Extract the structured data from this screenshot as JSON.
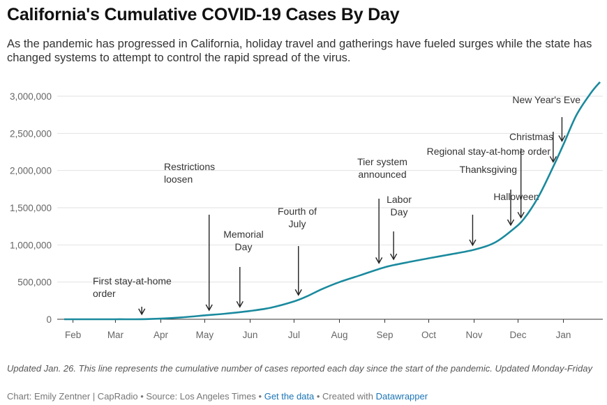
{
  "header": {
    "title": "California's Cumulative COVID-19 Cases By Day",
    "subtitle": "As the pandemic has progressed in California, holiday travel and gatherings have fueled surges while the state has changed systems to attempt to control the rapid spread of the virus."
  },
  "footer": {
    "note": "Updated Jan. 26. This line represents the cumulative number of cases reported each day since the start of the pandemic. Updated Monday-Friday",
    "byline": "Chart: Emily Zentner | CapRadio • Source: Los Angeles Times • ",
    "get_data": "Get the data",
    "separator": " • Created with ",
    "datawrapper": "Datawrapper"
  },
  "colors": {
    "line": "#1a8a9e",
    "grid": "#e2e2e2",
    "text": "#333333"
  },
  "chart_data": {
    "type": "line",
    "x_axis": {
      "range": [
        "2020-01-26",
        "2021-01-26"
      ],
      "ticks": [
        {
          "date": "2020-02-01",
          "label": "Feb"
        },
        {
          "date": "2020-03-01",
          "label": "Mar"
        },
        {
          "date": "2020-04-01",
          "label": "Apr"
        },
        {
          "date": "2020-05-01",
          "label": "May"
        },
        {
          "date": "2020-06-01",
          "label": "Jun"
        },
        {
          "date": "2020-07-01",
          "label": "Jul"
        },
        {
          "date": "2020-08-01",
          "label": "Aug"
        },
        {
          "date": "2020-09-01",
          "label": "Sep"
        },
        {
          "date": "2020-10-01",
          "label": "Oct"
        },
        {
          "date": "2020-11-01",
          "label": "Nov"
        },
        {
          "date": "2020-12-01",
          "label": "Dec"
        },
        {
          "date": "2021-01-01",
          "label": "Jan"
        }
      ]
    },
    "y_axis": {
      "range": [
        0,
        3000000
      ],
      "ticks": [
        {
          "value": 0,
          "label": "0"
        },
        {
          "value": 500000,
          "label": "500,000"
        },
        {
          "value": 1000000,
          "label": "1,000,000"
        },
        {
          "value": 1500000,
          "label": "1,500,000"
        },
        {
          "value": 2000000,
          "label": "2,000,000"
        },
        {
          "value": 2500000,
          "label": "2,500,000"
        },
        {
          "value": 3000000,
          "label": "3,000,000"
        }
      ]
    },
    "grid": true,
    "series": [
      {
        "points": [
          [
            "2020-01-26",
            0
          ],
          [
            "2020-03-01",
            100
          ],
          [
            "2020-03-19",
            1000
          ],
          [
            "2020-04-01",
            9000
          ],
          [
            "2020-04-15",
            25000
          ],
          [
            "2020-05-01",
            52000
          ],
          [
            "2020-05-15",
            75000
          ],
          [
            "2020-06-01",
            112000
          ],
          [
            "2020-06-15",
            155000
          ],
          [
            "2020-07-01",
            240000
          ],
          [
            "2020-07-10",
            310000
          ],
          [
            "2020-07-20",
            405000
          ],
          [
            "2020-08-01",
            500000
          ],
          [
            "2020-08-15",
            590000
          ],
          [
            "2020-09-01",
            700000
          ],
          [
            "2020-09-15",
            760000
          ],
          [
            "2020-10-01",
            820000
          ],
          [
            "2020-10-15",
            870000
          ],
          [
            "2020-11-01",
            935000
          ],
          [
            "2020-11-15",
            1030000
          ],
          [
            "2020-11-27",
            1200000
          ],
          [
            "2020-12-05",
            1350000
          ],
          [
            "2020-12-15",
            1650000
          ],
          [
            "2020-12-25",
            2050000
          ],
          [
            "2021-01-01",
            2350000
          ],
          [
            "2021-01-10",
            2750000
          ],
          [
            "2021-01-20",
            3050000
          ],
          [
            "2021-01-26",
            3190000
          ]
        ]
      }
    ],
    "annotations": [
      {
        "label": [
          "First stay-at-home",
          "order"
        ],
        "date": "2020-03-19",
        "value": 1000,
        "align": "start"
      },
      {
        "label": [
          "Restrictions",
          "loosen"
        ],
        "date": "2020-05-04",
        "value": 56000,
        "align": "start"
      },
      {
        "label": [
          "Memorial",
          "Day"
        ],
        "date": "2020-05-25",
        "value": 100000,
        "align": "middle"
      },
      {
        "label": [
          "Fourth of",
          "July"
        ],
        "date": "2020-07-04",
        "value": 260000,
        "align": "middle"
      },
      {
        "label": [
          "Tier system",
          "announced"
        ],
        "date": "2020-08-28",
        "value": 690000,
        "align": "middle"
      },
      {
        "label": [
          "Labor",
          "Day"
        ],
        "date": "2020-09-07",
        "value": 740000,
        "align": "middle"
      },
      {
        "label": [
          "Halloween"
        ],
        "date": "2020-10-31",
        "value": 930000,
        "align": "middle"
      },
      {
        "label": [
          "Thanksgiving"
        ],
        "date": "2020-11-26",
        "value": 1200000,
        "align": "end"
      },
      {
        "label": [
          "Regional stay-at-home order"
        ],
        "date": "2020-12-03",
        "value": 1300000,
        "align": "end"
      },
      {
        "label": [
          "Christmas"
        ],
        "date": "2020-12-25",
        "value": 2050000,
        "align": "end"
      },
      {
        "label": [
          "New Year's Eve"
        ],
        "date": "2020-12-31",
        "value": 2330000,
        "align": "end"
      }
    ]
  }
}
